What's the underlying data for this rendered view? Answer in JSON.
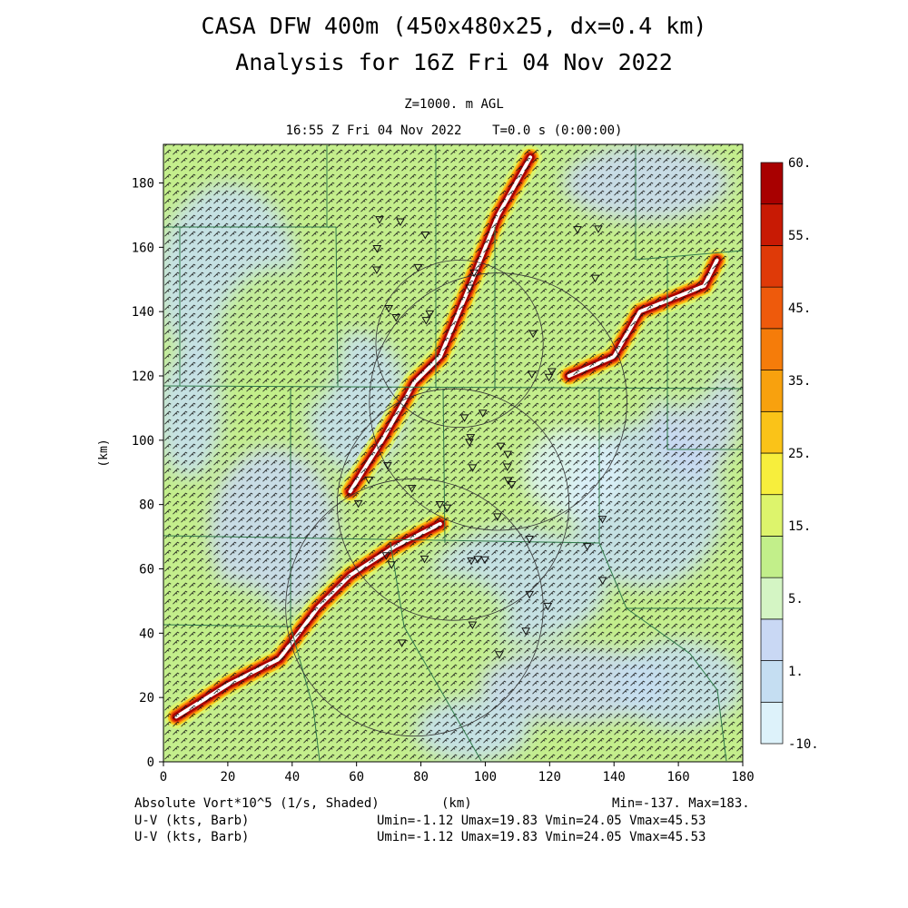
{
  "header": {
    "title_line1": "CASA DFW 400m (450x480x25, dx=0.4 km)",
    "title_line2": "Analysis for 16Z Fri 04 Nov 2022",
    "level": "Z=1000. m AGL",
    "valid_time": "16:55 Z Fri 04 Nov 2022    T=0.0 s (0:00:00)"
  },
  "footer": {
    "field_label": "Absolute Vort*10^5 (1/s, Shaded)",
    "x_unit": "(km)",
    "minmax": "Min=-137. Max=183.",
    "barb1_label": "U-V (kts, Barb)",
    "barb1_stats": "Umin=-1.12 Umax=19.83 Vmin=24.05 Vmax=45.53",
    "barb2_label": "U-V (kts, Barb)",
    "barb2_stats": "Umin=-1.12 Umax=19.83 Vmin=24.05 Vmax=45.53"
  },
  "chart_data": {
    "type": "heatmap",
    "variable": "Absolute Vort*10^5 (1/s, Shaded)",
    "xlabel": "(km)",
    "ylabel": "(km)",
    "xlim": [
      0,
      180
    ],
    "ylim": [
      0,
      192
    ],
    "xticks": [
      "0",
      "20",
      "40",
      "60",
      "80",
      "100",
      "120",
      "140",
      "160",
      "180"
    ],
    "yticks": [
      "0",
      "20",
      "40",
      "60",
      "80",
      "100",
      "120",
      "140",
      "160",
      "180"
    ],
    "min": -137,
    "max": 183,
    "colorbar": {
      "labels": [
        "60.",
        "55.",
        "45.",
        "35.",
        "25.",
        "15.",
        "5.",
        "1.",
        "-10."
      ],
      "colors": [
        "#ddf2fa",
        "#c5def2",
        "#c9d8f4",
        "#d4f5c4",
        "#c2ef8a",
        "#ddf46c",
        "#f7ee3c",
        "#fac318",
        "#f8a10e",
        "#f57c0a",
        "#ee5a0c",
        "#df3a08",
        "#c81a04",
        "#a80000"
      ]
    },
    "wind_barbs": {
      "u_range_kts": [
        -1.12,
        19.83
      ],
      "v_range_kts": [
        24.05,
        45.53
      ]
    },
    "features": [
      {
        "kind": "vorticity_band",
        "points": [
          [
            4,
            14
          ],
          [
            20,
            24
          ],
          [
            36,
            32
          ],
          [
            48,
            48
          ],
          [
            58,
            58
          ],
          [
            72,
            67
          ],
          [
            86,
            74
          ]
        ]
      },
      {
        "kind": "vorticity_band",
        "points": [
          [
            58,
            84
          ],
          [
            68,
            100
          ],
          [
            78,
            118
          ],
          [
            86,
            126
          ],
          [
            96,
            150
          ],
          [
            104,
            170
          ],
          [
            114,
            188
          ]
        ]
      },
      {
        "kind": "vorticity_band",
        "points": [
          [
            126,
            120
          ],
          [
            140,
            126
          ],
          [
            148,
            140
          ],
          [
            168,
            148
          ],
          [
            172,
            156
          ]
        ]
      }
    ],
    "range_rings": [
      {
        "center": [
          78,
          48
        ],
        "radius": 40
      },
      {
        "center": [
          90,
          80
        ],
        "radius": 36
      },
      {
        "center": [
          104,
          112
        ],
        "radius": 40
      },
      {
        "center": [
          92,
          130
        ],
        "radius": 26
      }
    ],
    "radar_sites_count": 52
  }
}
